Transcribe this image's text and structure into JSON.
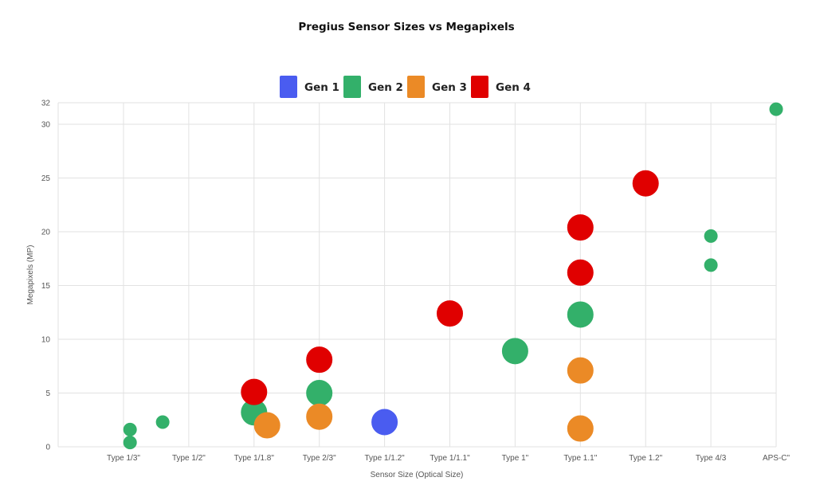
{
  "chart_data": {
    "type": "scatter",
    "title": "Pregius Sensor Sizes vs Megapixels",
    "xlabel": "Sensor Size (Optical Size)",
    "ylabel": "Megapixels (MP)",
    "categories": [
      "Type 1/3\"",
      "Type 1/2\"",
      "Type 1/1.8\"",
      "Type 2/3\"",
      "Type 1/1.2\"",
      "Type 1/1.1\"",
      "Type 1\"",
      "Type 1.1\"",
      "Type 1.2\"",
      "Type 4/3",
      "APS-C\""
    ],
    "ylim": [
      0,
      32
    ],
    "yticks": [
      0,
      5,
      10,
      15,
      20,
      25,
      30,
      32
    ],
    "grid": true,
    "legend_position": "top",
    "series": [
      {
        "name": "Gen 1",
        "color": "#4a5cf0",
        "points": [
          {
            "x": 4,
            "y": 2.3,
            "size": "large"
          }
        ]
      },
      {
        "name": "Gen 2",
        "color": "#33b06a",
        "points": [
          {
            "x": 0.1,
            "y": 1.6,
            "size": "small"
          },
          {
            "x": 0.1,
            "y": 0.4,
            "size": "small"
          },
          {
            "x": 0.6,
            "y": 2.3,
            "size": "small"
          },
          {
            "x": 2,
            "y": 3.2,
            "size": "large"
          },
          {
            "x": 3,
            "y": 5.0,
            "size": "large"
          },
          {
            "x": 6,
            "y": 8.9,
            "size": "large"
          },
          {
            "x": 7,
            "y": 12.3,
            "size": "large"
          },
          {
            "x": 9,
            "y": 19.6,
            "size": "small"
          },
          {
            "x": 9,
            "y": 16.9,
            "size": "small"
          },
          {
            "x": 10,
            "y": 31.4,
            "size": "small"
          }
        ]
      },
      {
        "name": "Gen 3",
        "color": "#eb8a26",
        "points": [
          {
            "x": 2.2,
            "y": 2.0,
            "size": "large"
          },
          {
            "x": 3,
            "y": 2.8,
            "size": "large"
          },
          {
            "x": 7,
            "y": 7.1,
            "size": "large"
          },
          {
            "x": 7,
            "y": 1.7,
            "size": "large"
          }
        ]
      },
      {
        "name": "Gen 4",
        "color": "#e00000",
        "points": [
          {
            "x": 2,
            "y": 5.1,
            "size": "large"
          },
          {
            "x": 3,
            "y": 8.1,
            "size": "large"
          },
          {
            "x": 5,
            "y": 12.4,
            "size": "large"
          },
          {
            "x": 7,
            "y": 20.4,
            "size": "large"
          },
          {
            "x": 7,
            "y": 16.2,
            "size": "large"
          },
          {
            "x": 8,
            "y": 24.5,
            "size": "large"
          }
        ]
      }
    ]
  }
}
